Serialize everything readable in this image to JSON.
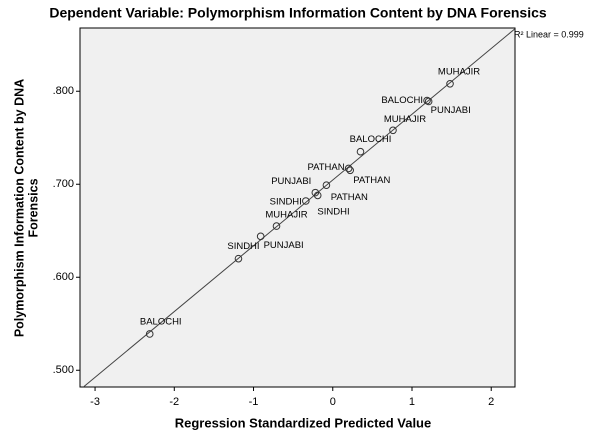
{
  "chart_data": {
    "type": "scatter",
    "title": "Dependent Variable: Polymorphism Information Content by DNA Forensics",
    "x_label": "Regression Standardized Predicted Value",
    "y_label": [
      "Polymorphism Information Content by DNA",
      "Forensics"
    ],
    "fit_label": "R² Linear = 0.999",
    "x": [
      -2.31,
      -1.19,
      -0.91,
      -0.71,
      -0.34,
      -0.22,
      -0.19,
      -0.08,
      0.2,
      0.22,
      0.35,
      0.76,
      1.19,
      1.21,
      1.48
    ],
    "y": [
      0.539,
      0.62,
      0.644,
      0.655,
      0.682,
      0.691,
      0.688,
      0.699,
      0.717,
      0.715,
      0.735,
      0.758,
      0.79,
      0.789,
      0.808
    ],
    "labels": [
      "BALOCHI",
      "SINDHI",
      "PUNJABI",
      "MUHAJIR",
      "SINDHI",
      "PUNJABI",
      "PATHAN",
      "SINDHI",
      "PATHAN",
      "PATHAN",
      "BALOCHI",
      "MUHAJIR",
      "BALOCHI",
      "PUNJABI",
      "MUHAJIR"
    ],
    "xlim": [
      -3.19,
      2.3
    ],
    "ylim": [
      0.482,
      0.868
    ],
    "xticks": [
      -3,
      -2,
      -1,
      0,
      1,
      2
    ],
    "yticks": [
      {
        "value": 0.5,
        "label": ".500"
      },
      {
        "value": 0.6,
        "label": ".600"
      },
      {
        "value": 0.7,
        "label": ".700"
      },
      {
        "value": 0.8,
        "label": ".800"
      }
    ],
    "color": "#333333"
  }
}
